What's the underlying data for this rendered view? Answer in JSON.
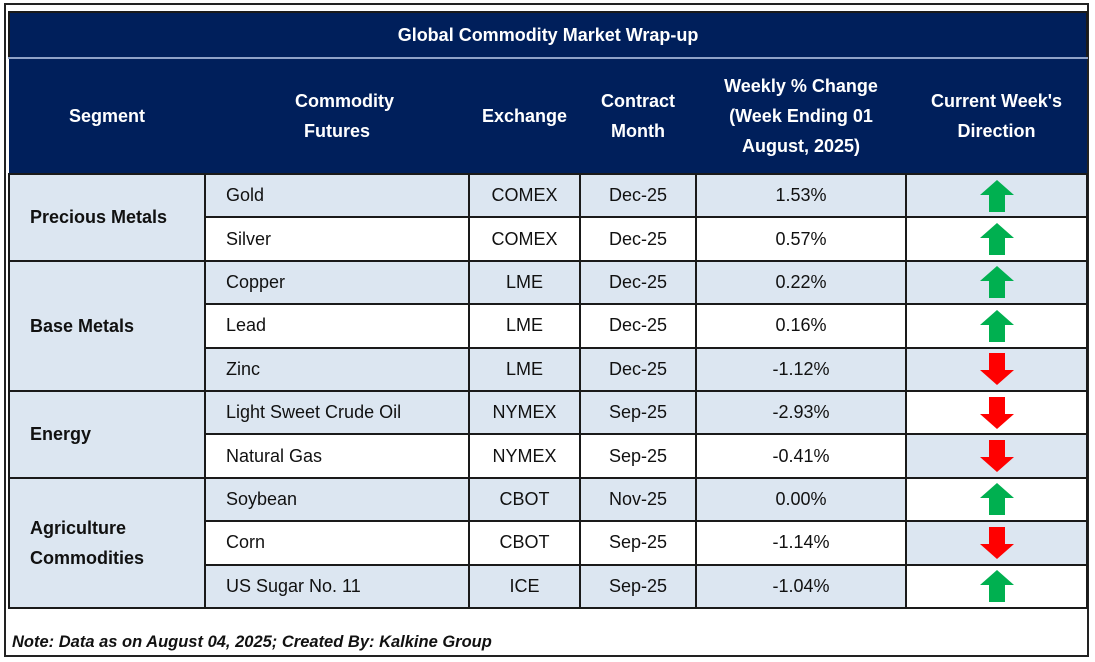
{
  "title": "Global Commodity Market Wrap-up",
  "headers": {
    "segment": "Segment",
    "commodity": "Commodity Futures",
    "exchange": "Exchange",
    "contract_month": "Contract Month",
    "weekly_change": "Weekly % Change (Week Ending  01 August, 2025)",
    "direction": "Current Week's Direction"
  },
  "colors": {
    "header_bg": "#001f5b",
    "row_shade": "#dce6f1",
    "up": "#00b050",
    "down": "#ff0000"
  },
  "segments": [
    {
      "name": "Precious Metals",
      "rows": [
        {
          "commodity": "Gold",
          "exchange": "COMEX",
          "month": "Dec-25",
          "change": "1.53%",
          "direction": "up"
        },
        {
          "commodity": "Silver",
          "exchange": "COMEX",
          "month": "Dec-25",
          "change": "0.57%",
          "direction": "up"
        }
      ]
    },
    {
      "name": "Base Metals",
      "rows": [
        {
          "commodity": "Copper",
          "exchange": "LME",
          "month": "Dec-25",
          "change": "0.22%",
          "direction": "up"
        },
        {
          "commodity": "Lead",
          "exchange": "LME",
          "month": "Dec-25",
          "change": "0.16%",
          "direction": "up"
        },
        {
          "commodity": "Zinc",
          "exchange": "LME",
          "month": "Dec-25",
          "change": "-1.12%",
          "direction": "down"
        }
      ]
    },
    {
      "name": "Energy",
      "rows": [
        {
          "commodity": "Light Sweet Crude Oil",
          "exchange": "NYMEX",
          "month": "Sep-25",
          "change": "-2.93%",
          "direction": "down"
        },
        {
          "commodity": "Natural Gas",
          "exchange": "NYMEX",
          "month": "Sep-25",
          "change": "-0.41%",
          "direction": "down"
        }
      ]
    },
    {
      "name": "Agriculture Commodities",
      "rows": [
        {
          "commodity": "Soybean",
          "exchange": "CBOT",
          "month": "Nov-25",
          "change": "0.00%",
          "direction": "up"
        },
        {
          "commodity": "Corn",
          "exchange": "CBOT",
          "month": "Sep-25",
          "change": "-1.14%",
          "direction": "down"
        },
        {
          "commodity": "US Sugar No. 11",
          "exchange": "ICE",
          "month": "Sep-25",
          "change": "-1.04%",
          "direction": "up"
        }
      ]
    }
  ],
  "note": "Note: Data as on August 04, 2025; Created By: Kalkine Group"
}
